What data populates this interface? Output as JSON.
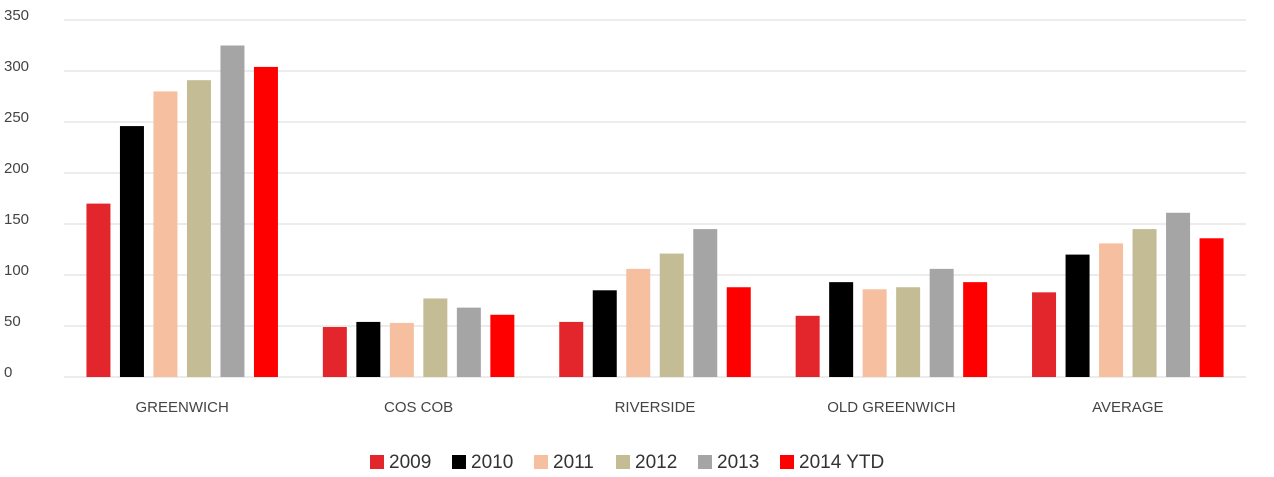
{
  "chart_data": {
    "type": "bar",
    "categories": [
      "GREENWICH",
      "COS COB",
      "RIVERSIDE",
      "OLD GREENWICH",
      "AVERAGE"
    ],
    "series": [
      {
        "name": "2009",
        "color": "#e3262b",
        "values": [
          170,
          49,
          54,
          60,
          83
        ]
      },
      {
        "name": "2010",
        "color": "#000000",
        "values": [
          246,
          54,
          85,
          93,
          120
        ]
      },
      {
        "name": "2011",
        "color": "#f5bfa0",
        "values": [
          280,
          53,
          106,
          86,
          131
        ]
      },
      {
        "name": "2012",
        "color": "#c4bc95",
        "values": [
          291,
          77,
          121,
          88,
          145
        ]
      },
      {
        "name": "2013",
        "color": "#a5a5a5",
        "values": [
          325,
          68,
          145,
          106,
          161
        ]
      },
      {
        "name": "2014 YTD",
        "color": "#ff0000",
        "values": [
          304,
          61,
          88,
          93,
          136
        ]
      }
    ],
    "ylim": [
      0,
      350
    ],
    "yticks": [
      0,
      50,
      100,
      150,
      200,
      250,
      300,
      350
    ],
    "grid": true
  }
}
